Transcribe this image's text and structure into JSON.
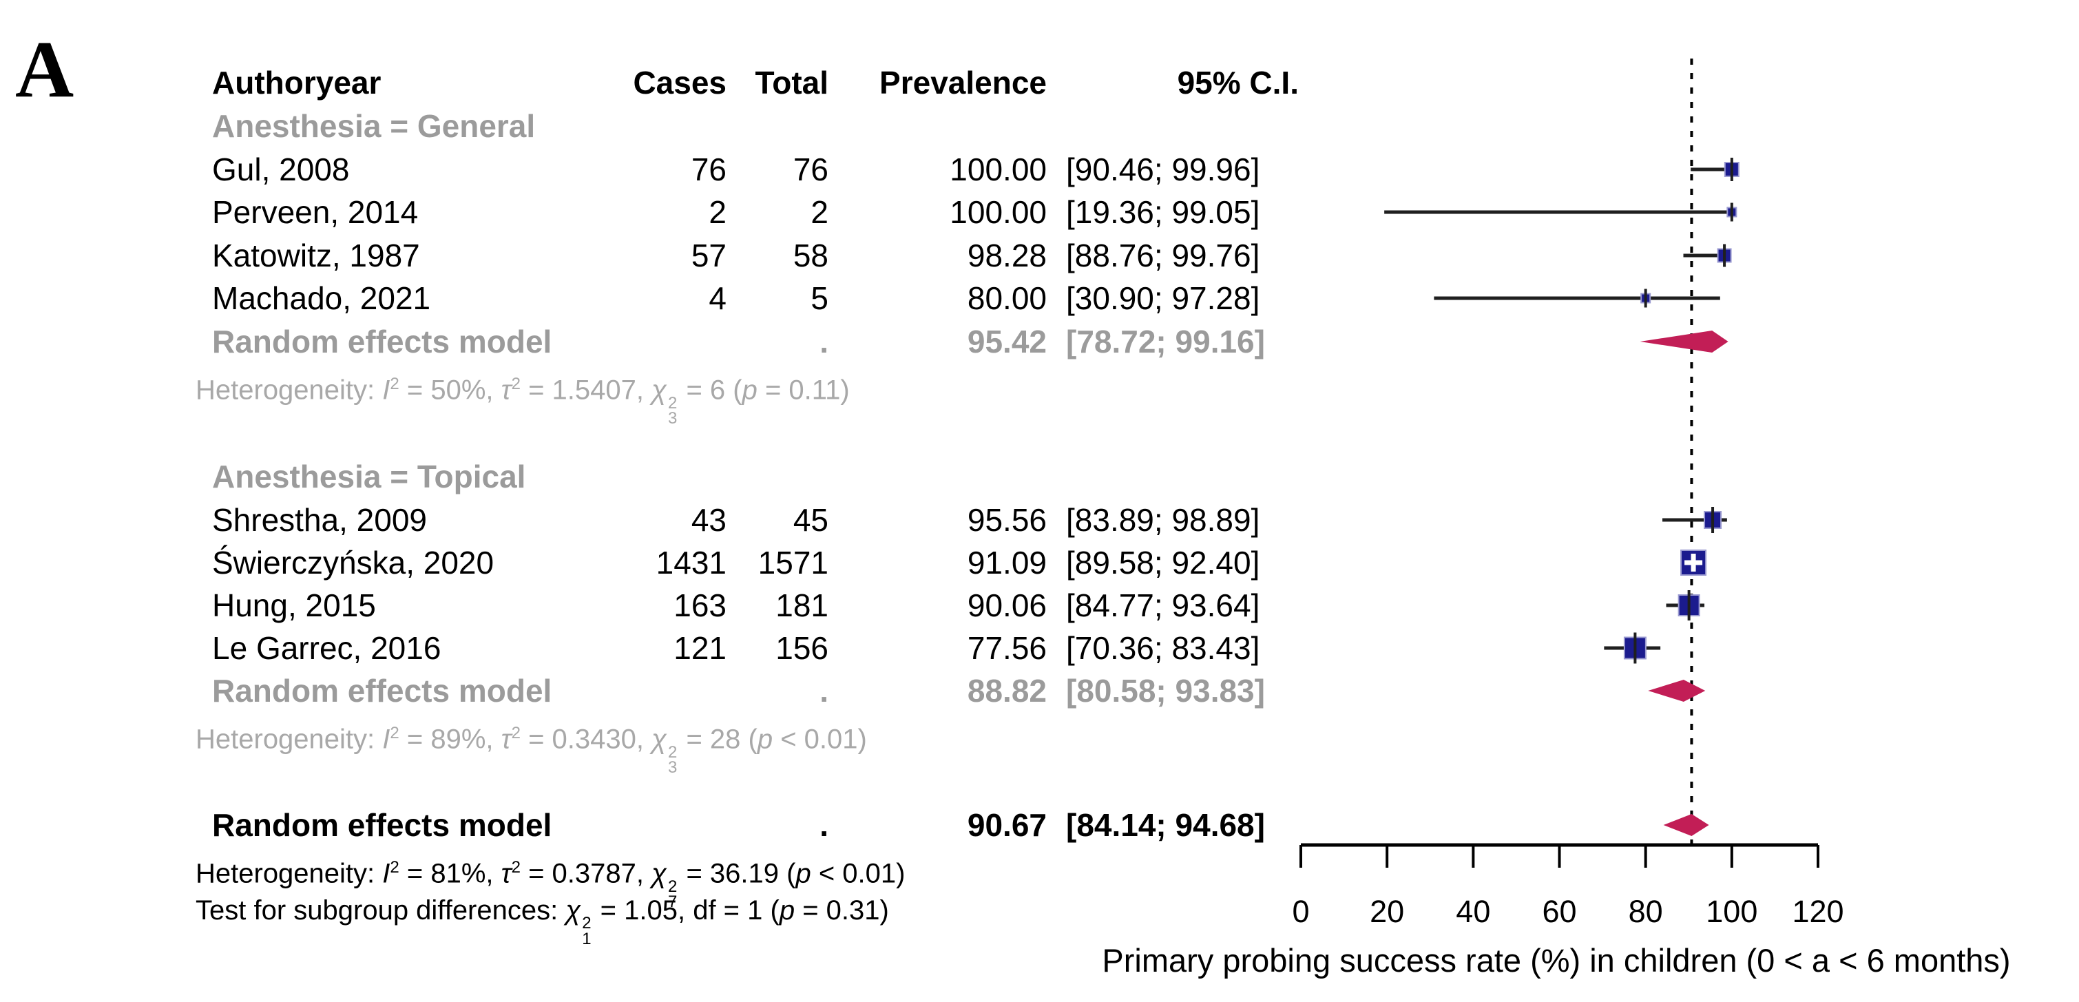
{
  "panel_label": "A",
  "colors": {
    "marker_square": "#1b1b8e",
    "marker_square_halo": "#9a9ad0",
    "summary_diamond": "#c21e56",
    "ci_line": "#1f1f1f",
    "reference_line": "#000000",
    "subgroup_text": "#9b9b9b",
    "heterogeneity_text": "#a8a8a8",
    "text": "#000000"
  },
  "chart_data": {
    "type": "forest",
    "title": "",
    "columns": {
      "author": "Authoryear",
      "cases": "Cases",
      "total": "Total",
      "prevalence": "Prevalence",
      "ci": "95% C.I."
    },
    "xlabel": "Primary probing success rate (%) in children (0 < a < 6 months)",
    "xlim": [
      0,
      120
    ],
    "xticks": [
      0,
      20,
      40,
      60,
      80,
      100,
      120
    ],
    "reference_line": 90.67,
    "groups": [
      {
        "label": "Anesthesia = General",
        "studies": [
          {
            "author": "Gul, 2008",
            "cases": "76",
            "total": "76",
            "prevalence": "100.00",
            "ci_text": "[90.46; 99.96]",
            "est": 100.0,
            "lo": 90.46,
            "hi": 99.96,
            "marker_size": 20,
            "highlight_plus": false
          },
          {
            "author": "Perveen, 2014",
            "cases": "2",
            "total": "2",
            "prevalence": "100.00",
            "ci_text": "[19.36; 99.05]",
            "est": 100.0,
            "lo": 19.36,
            "hi": 99.05,
            "marker_size": 13,
            "highlight_plus": false
          },
          {
            "author": "Katowitz, 1987",
            "cases": "57",
            "total": "58",
            "prevalence": "98.28",
            "ci_text": "[88.76; 99.76]",
            "est": 98.28,
            "lo": 88.76,
            "hi": 99.76,
            "marker_size": 19,
            "highlight_plus": false
          },
          {
            "author": "Machado, 2021",
            "cases": "4",
            "total": "5",
            "prevalence": "80.00",
            "ci_text": "[30.90; 97.28]",
            "est": 80.0,
            "lo": 30.9,
            "hi": 97.28,
            "marker_size": 13,
            "highlight_plus": false
          }
        ],
        "summary": {
          "label": "Random effects model",
          "total_dot": ".",
          "prevalence": "95.42",
          "ci_text": "[78.72; 99.16]",
          "est": 95.42,
          "lo": 78.72,
          "hi": 99.16
        },
        "heterogeneity_html": "Heterogeneity: <i>I</i><sup>2</sup> = 50%, <i>τ</i><sup>2</sup> = 1.5407, <i>χ</i><span class='ss'><span>2</span><span>3</span></span> = 6 (<i>p</i> = 0.11)"
      },
      {
        "label": "Anesthesia = Topical",
        "studies": [
          {
            "author": "Shrestha, 2009",
            "cases": "43",
            "total": "45",
            "prevalence": "95.56",
            "ci_text": "[83.89; 98.89]",
            "est": 95.56,
            "lo": 83.89,
            "hi": 98.89,
            "marker_size": 24,
            "highlight_plus": false
          },
          {
            "author": "Świerczyńska, 2020",
            "cases": "1431",
            "total": "1571",
            "prevalence": "91.09",
            "ci_text": "[89.58; 92.40]",
            "est": 91.09,
            "lo": 89.58,
            "hi": 92.4,
            "marker_size": 36,
            "highlight_plus": true
          },
          {
            "author": "Hung, 2015",
            "cases": "163",
            "total": "181",
            "prevalence": "90.06",
            "ci_text": "[84.77; 93.64]",
            "est": 90.06,
            "lo": 84.77,
            "hi": 93.64,
            "marker_size": 30,
            "highlight_plus": false
          },
          {
            "author": "Le Garrec, 2016",
            "cases": "121",
            "total": "156",
            "prevalence": "77.56",
            "ci_text": "[70.36; 83.43]",
            "est": 77.56,
            "lo": 70.36,
            "hi": 83.43,
            "marker_size": 31,
            "highlight_plus": false
          }
        ],
        "summary": {
          "label": "Random effects model",
          "total_dot": ".",
          "prevalence": "88.82",
          "ci_text": "[80.58; 93.83]",
          "est": 88.82,
          "lo": 80.58,
          "hi": 93.83
        },
        "heterogeneity_html": "Heterogeneity: <i>I</i><sup>2</sup> = 89%, <i>τ</i><sup>2</sup> = 0.3430, <i>χ</i><span class='ss'><span>2</span><span>3</span></span> = 28 (<i>p</i> < 0.01)"
      }
    ],
    "overall": {
      "label": "Random effects model",
      "total_dot": ".",
      "prevalence": "90.67",
      "ci_text": "[84.14; 94.68]",
      "est": 90.67,
      "lo": 84.14,
      "hi": 94.68
    },
    "overall_heterogeneity_html": "Heterogeneity: <i>I</i><sup>2</sup> = 81%, <i>τ</i><sup>2</sup> = 0.3787, <i>χ</i><span class='ss'><span>2</span><span>7</span></span> = 36.19 (<i>p</i> < 0.01)",
    "subgroup_test_html": "Test for subgroup differences: <i>χ</i><span class='ss'><span>2</span><span>1</span></span> = 1.05, df = 1 (<i>p</i> = 0.31)"
  }
}
